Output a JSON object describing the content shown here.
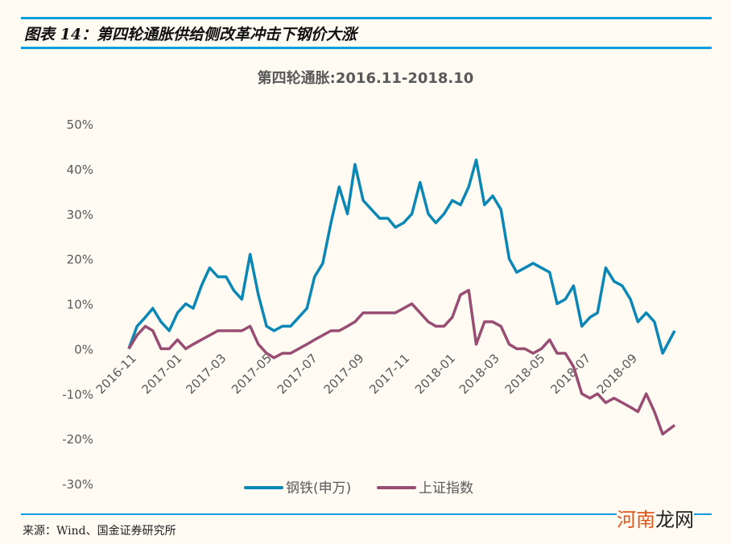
{
  "figure_title": "图表 14：第四轮通胀供给侧改革冲击下钢价大涨",
  "source": "来源：Wind、国金证券研究所",
  "watermark": {
    "part1": "河南",
    "part2": "龙网"
  },
  "colors": {
    "rule": "#0a9de0",
    "steel": "#0a87b5",
    "sse": "#984d73",
    "background": "#fffaf2"
  },
  "chart_data": {
    "type": "line",
    "title": "第四轮通胀:2016.11-2018.10",
    "xlabel": "",
    "ylabel": "",
    "ylim": [
      -30,
      50
    ],
    "yticks": [
      "50%",
      "40%",
      "30%",
      "20%",
      "10%",
      "0%",
      "-10%",
      "-20%",
      "-30%"
    ],
    "ytick_values": [
      50,
      40,
      30,
      20,
      10,
      0,
      -10,
      -20,
      -30
    ],
    "xlim": [
      "2016-11-01",
      "2018-10-31"
    ],
    "xticks": [
      "2016-11",
      "2017-01",
      "2017-03",
      "2017-05",
      "2017-07",
      "2017-09",
      "2017-11",
      "2018-01",
      "2018-03",
      "2018-05",
      "2018-07",
      "2018-09"
    ],
    "grid": false,
    "legend": "bottom",
    "x": [
      "2016-11-01",
      "2016-11-12",
      "2016-11-23",
      "2016-12-03",
      "2016-12-14",
      "2016-12-25",
      "2017-01-05",
      "2017-01-16",
      "2017-01-26",
      "2017-02-06",
      "2017-02-17",
      "2017-02-28",
      "2017-03-11",
      "2017-03-21",
      "2017-04-01",
      "2017-04-12",
      "2017-04-23",
      "2017-05-04",
      "2017-05-14",
      "2017-05-25",
      "2017-06-05",
      "2017-06-16",
      "2017-06-27",
      "2017-07-07",
      "2017-07-18",
      "2017-07-29",
      "2017-08-09",
      "2017-08-20",
      "2017-08-30",
      "2017-09-10",
      "2017-09-21",
      "2017-10-02",
      "2017-10-13",
      "2017-10-23",
      "2017-11-03",
      "2017-11-14",
      "2017-11-25",
      "2017-12-06",
      "2017-12-16",
      "2017-12-27",
      "2018-01-07",
      "2018-01-18",
      "2018-01-29",
      "2018-02-08",
      "2018-02-19",
      "2018-03-02",
      "2018-03-13",
      "2018-03-24",
      "2018-04-03",
      "2018-04-14",
      "2018-04-25",
      "2018-05-06",
      "2018-05-17",
      "2018-05-27",
      "2018-06-07",
      "2018-06-18",
      "2018-06-29",
      "2018-07-10",
      "2018-07-20",
      "2018-07-31",
      "2018-08-11",
      "2018-08-22",
      "2018-09-02",
      "2018-09-12",
      "2018-09-23",
      "2018-10-04",
      "2018-10-15",
      "2018-10-31"
    ],
    "series": [
      {
        "name": "钢铁(申万)",
        "values": [
          0,
          5,
          7,
          9,
          6,
          4,
          8,
          10,
          9,
          14,
          18,
          16,
          16,
          13,
          11,
          21,
          12,
          5,
          4,
          5,
          5,
          7,
          9,
          16,
          19,
          28,
          36,
          30,
          41,
          33,
          31,
          29,
          29,
          27,
          28,
          30,
          37,
          30,
          28,
          30,
          33,
          32,
          36,
          42,
          32,
          34,
          31,
          20,
          17,
          18,
          19,
          18,
          17,
          10,
          11,
          14,
          5,
          7,
          8,
          18,
          15,
          14,
          11,
          6,
          8,
          6,
          -1,
          4
        ]
      },
      {
        "name": "上证指数",
        "values": [
          0,
          3,
          5,
          4,
          0,
          0,
          2,
          0,
          1,
          2,
          3,
          4,
          4,
          4,
          4,
          5,
          1,
          -1,
          -2,
          -1,
          -1,
          0,
          1,
          2,
          3,
          4,
          4,
          5,
          6,
          8,
          8,
          8,
          8,
          8,
          9,
          10,
          8,
          6,
          5,
          5,
          7,
          12,
          13,
          1,
          6,
          6,
          5,
          1,
          0,
          0,
          -1,
          0,
          2,
          -1,
          -1,
          -4,
          -10,
          -11,
          -10,
          -12,
          -11,
          -12,
          -13,
          -14,
          -10,
          -14,
          -19,
          -17
        ]
      }
    ]
  }
}
